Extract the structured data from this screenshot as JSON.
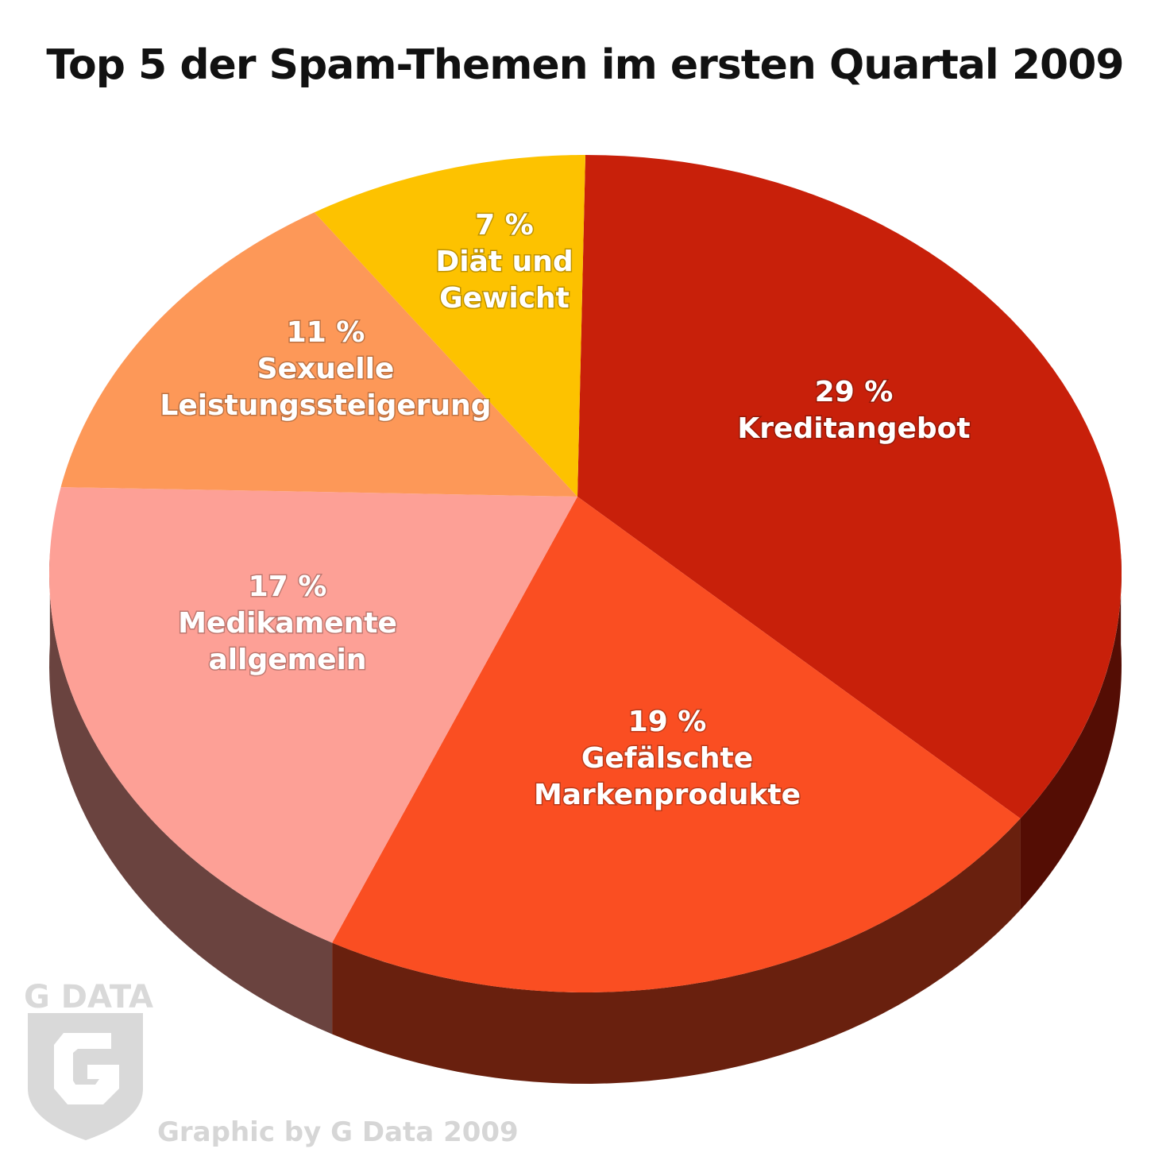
{
  "chart_data": {
    "type": "pie",
    "title": "Top 5 der Spam-Themen im ersten Quartal 2009",
    "slices": [
      {
        "label": "Kreditangebot",
        "value": 29,
        "value_label": "29 %",
        "color": "#c8200a",
        "label_lines": [
          "29 %",
          "Kreditangebot"
        ]
      },
      {
        "label": "Gefälschte Markenprodukte",
        "value": 19,
        "value_label": "19 %",
        "color": "#fa4e22",
        "label_lines": [
          "19 %",
          "Gefälschte",
          "Markenprodukte"
        ]
      },
      {
        "label": "Medikamente allgemein",
        "value": 17,
        "value_label": "17 %",
        "color": "#fda096",
        "label_lines": [
          "17 %",
          "Medikamente",
          "allgemein"
        ]
      },
      {
        "label": "Sexuelle Leistungssteigerung",
        "value": 11,
        "value_label": "11 %",
        "color": "#fd9858",
        "label_lines": [
          "11 %",
          "Sexuelle",
          "Leistungssteigerung"
        ]
      },
      {
        "label": "Diät und Gewicht",
        "value": 7,
        "value_label": "7 %",
        "color": "#fdc200",
        "label_lines": [
          "7 %",
          "Diät und",
          "Gewicht"
        ]
      }
    ],
    "start": "top",
    "direction": "clockwise",
    "style": "3d"
  },
  "logo_text": "G DATA",
  "credit": "Graphic by G Data 2009"
}
